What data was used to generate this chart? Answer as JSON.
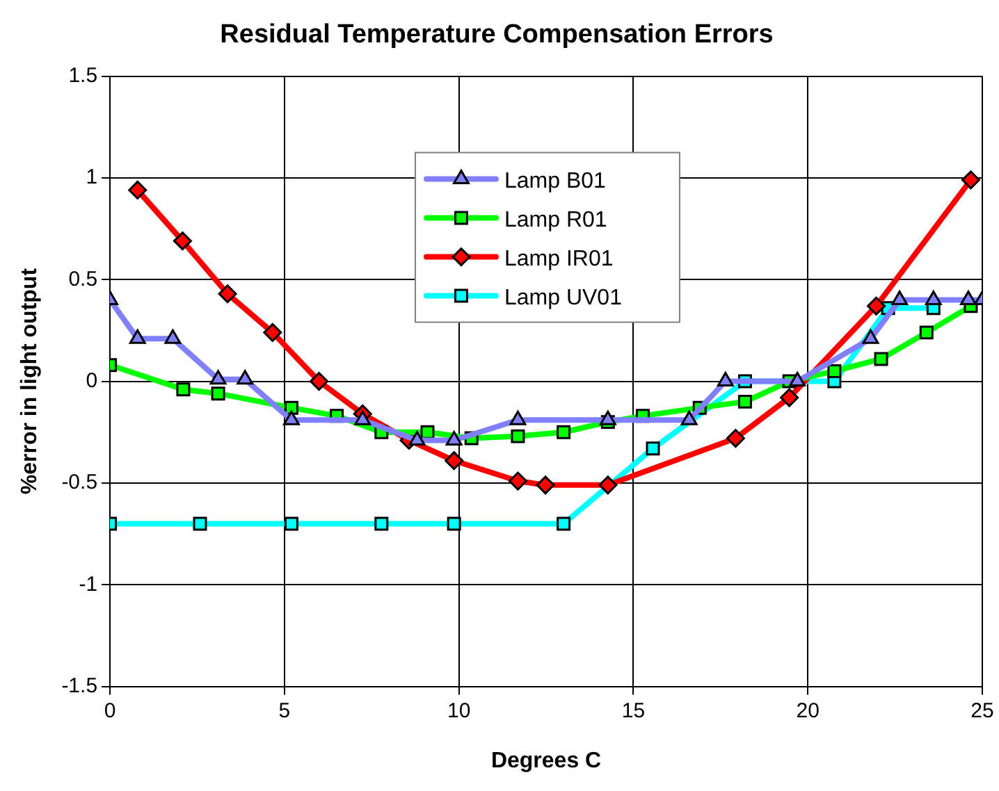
{
  "chart_data": {
    "type": "line",
    "title": "Residual Temperature Compensation Errors",
    "xlabel": "Degrees C",
    "ylabel": "%error in light output",
    "xlim": [
      0,
      25
    ],
    "xticks": [
      0,
      5,
      10,
      15,
      20,
      25
    ],
    "ylim": [
      -1.5,
      1.5
    ],
    "yticks": [
      -1.5,
      -1,
      -0.5,
      0,
      0.5,
      1,
      1.5
    ],
    "grid": true,
    "legend": "top",
    "line_style": "solid",
    "series": [
      {
        "name": "Lamp B01",
        "color": "#8080ff",
        "marker": "triangle",
        "x": [
          0,
          0.79,
          1.8,
          3.1,
          3.87,
          5.2,
          7.24,
          8.8,
          9.86,
          11.69,
          14.27,
          16.6,
          17.64,
          19.7,
          21.8,
          22.63,
          23.6,
          24.6,
          25
        ],
        "values": [
          0.4,
          0.21,
          0.21,
          0.01,
          0.01,
          -0.19,
          -0.19,
          -0.29,
          -0.29,
          -0.19,
          -0.19,
          -0.19,
          0,
          0,
          0.21,
          0.4,
          0.4,
          0.4,
          0.4
        ]
      },
      {
        "name": "Lamp R01",
        "color": "#00ff00",
        "marker": "square",
        "x": [
          0,
          2.1,
          3.1,
          5.2,
          6.5,
          7.78,
          9.1,
          10.36,
          11.69,
          13,
          14.27,
          15.27,
          16.9,
          18.2,
          19.47,
          20.76,
          22.1,
          23.4,
          24.67
        ],
        "values": [
          0.08,
          -0.04,
          -0.06,
          -0.13,
          -0.17,
          -0.25,
          -0.25,
          -0.28,
          -0.27,
          -0.25,
          -0.2,
          -0.17,
          -0.13,
          -0.1,
          0,
          0.05,
          0.11,
          0.24,
          0.37
        ]
      },
      {
        "name": "Lamp IR01",
        "color": "#ff0000",
        "marker": "diamond",
        "x": [
          0.79,
          2.08,
          3.37,
          4.66,
          5.99,
          7.24,
          8.57,
          9.86,
          11.69,
          12.48,
          14.27,
          17.93,
          19.47,
          21.96,
          24.67
        ],
        "values": [
          0.94,
          0.69,
          0.43,
          0.24,
          0,
          -0.16,
          -0.29,
          -0.39,
          -0.49,
          -0.51,
          -0.51,
          -0.28,
          -0.08,
          0.37,
          0.99
        ]
      },
      {
        "name": "Lamp UV01",
        "color": "#00ffff",
        "marker": "square",
        "x": [
          0,
          2.58,
          5.2,
          7.78,
          9.86,
          13,
          15.56,
          18.2,
          20.76,
          22.3,
          23.6
        ],
        "values": [
          -0.7,
          -0.7,
          -0.7,
          -0.7,
          -0.7,
          -0.7,
          -0.33,
          0,
          0,
          0.36,
          0.36
        ]
      }
    ]
  }
}
